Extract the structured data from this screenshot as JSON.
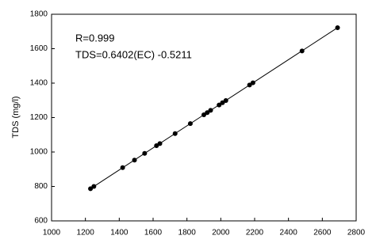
{
  "chart_data": {
    "type": "scatter",
    "y_label": "TDS (mg/l)",
    "annotations": [
      "R=0.999",
      "TDS=0.6402(EC) -0.5211"
    ],
    "x": [
      1230,
      1250,
      1420,
      1490,
      1550,
      1620,
      1640,
      1730,
      1820,
      1900,
      1920,
      1940,
      1990,
      2010,
      2030,
      2170,
      2190,
      2480,
      2690
    ],
    "series": [
      {
        "color": "#000000",
        "values": [
          787,
          800,
          909,
          953,
          992,
          1037,
          1049,
          1107,
          1165,
          1216,
          1229,
          1242,
          1273,
          1286,
          1299,
          1389,
          1402,
          1587,
          1722
        ]
      }
    ],
    "fit_line": {
      "x": [
        1230,
        2690
      ],
      "y": [
        787,
        1722
      ],
      "color": "#000000"
    },
    "xlim": [
      1000,
      2800
    ],
    "xticks": [
      1000,
      1200,
      1400,
      1600,
      1800,
      2000,
      2200,
      2400,
      2600,
      2800
    ],
    "ylim": [
      600,
      1800
    ],
    "yticks": [
      600,
      800,
      1000,
      1200,
      1400,
      1600,
      1800
    ]
  }
}
